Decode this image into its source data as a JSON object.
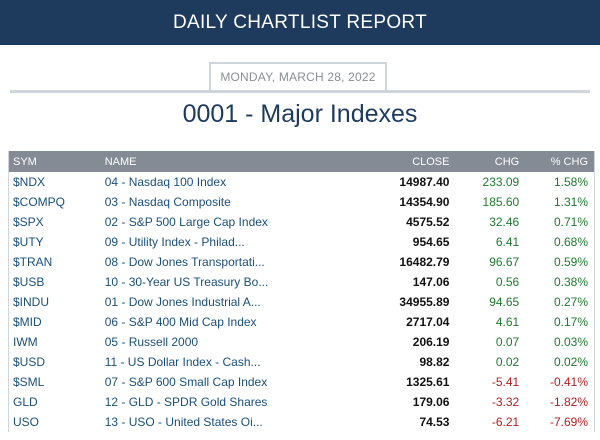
{
  "header": {
    "title": "DAILY CHARTLIST REPORT"
  },
  "date": "MONDAY, MARCH 28, 2022",
  "list_title": "0001 - Major Indexes",
  "columns": {
    "sym": "SYM",
    "name": "NAME",
    "close": "CLOSE",
    "chg": "CHG",
    "pct": "% CHG"
  },
  "rows": [
    {
      "sym": "$NDX",
      "name": "04 - Nasdaq 100 Index",
      "close": "14987.40",
      "chg": "233.09",
      "pct": "1.58%",
      "dir": "up"
    },
    {
      "sym": "$COMPQ",
      "name": "03 - Nasdaq Composite",
      "close": "14354.90",
      "chg": "185.60",
      "pct": "1.31%",
      "dir": "up"
    },
    {
      "sym": "$SPX",
      "name": "02 - S&P 500 Large Cap Index",
      "close": "4575.52",
      "chg": "32.46",
      "pct": "0.71%",
      "dir": "up"
    },
    {
      "sym": "$UTY",
      "name": "09 - Utility Index - Philad...",
      "close": "954.65",
      "chg": "6.41",
      "pct": "0.68%",
      "dir": "up"
    },
    {
      "sym": "$TRAN",
      "name": "08 - Dow Jones Transportati...",
      "close": "16482.79",
      "chg": "96.67",
      "pct": "0.59%",
      "dir": "up"
    },
    {
      "sym": "$USB",
      "name": "10 - 30-Year US Treasury Bo...",
      "close": "147.06",
      "chg": "0.56",
      "pct": "0.38%",
      "dir": "up"
    },
    {
      "sym": "$INDU",
      "name": "01 - Dow Jones Industrial A...",
      "close": "34955.89",
      "chg": "94.65",
      "pct": "0.27%",
      "dir": "up"
    },
    {
      "sym": "$MID",
      "name": "06 - S&P 400 Mid Cap Index",
      "close": "2717.04",
      "chg": "4.61",
      "pct": "0.17%",
      "dir": "up"
    },
    {
      "sym": "IWM",
      "name": "05 - Russell 2000",
      "close": "206.19",
      "chg": "0.07",
      "pct": "0.03%",
      "dir": "up"
    },
    {
      "sym": "$USD",
      "name": "11 - US Dollar Index - Cash...",
      "close": "98.82",
      "chg": "0.02",
      "pct": "0.02%",
      "dir": "up"
    },
    {
      "sym": "$SML",
      "name": "07 - S&P 600 Small Cap Index",
      "close": "1325.61",
      "chg": "-5.41",
      "pct": "-0.41%",
      "dir": "down"
    },
    {
      "sym": "GLD",
      "name": "12 - GLD - SPDR Gold Shares",
      "close": "179.06",
      "chg": "-3.32",
      "pct": "-1.82%",
      "dir": "down"
    },
    {
      "sym": "USO",
      "name": "13 - USO - United States Oi...",
      "close": "74.53",
      "chg": "-6.21",
      "pct": "-7.69%",
      "dir": "down"
    }
  ]
}
